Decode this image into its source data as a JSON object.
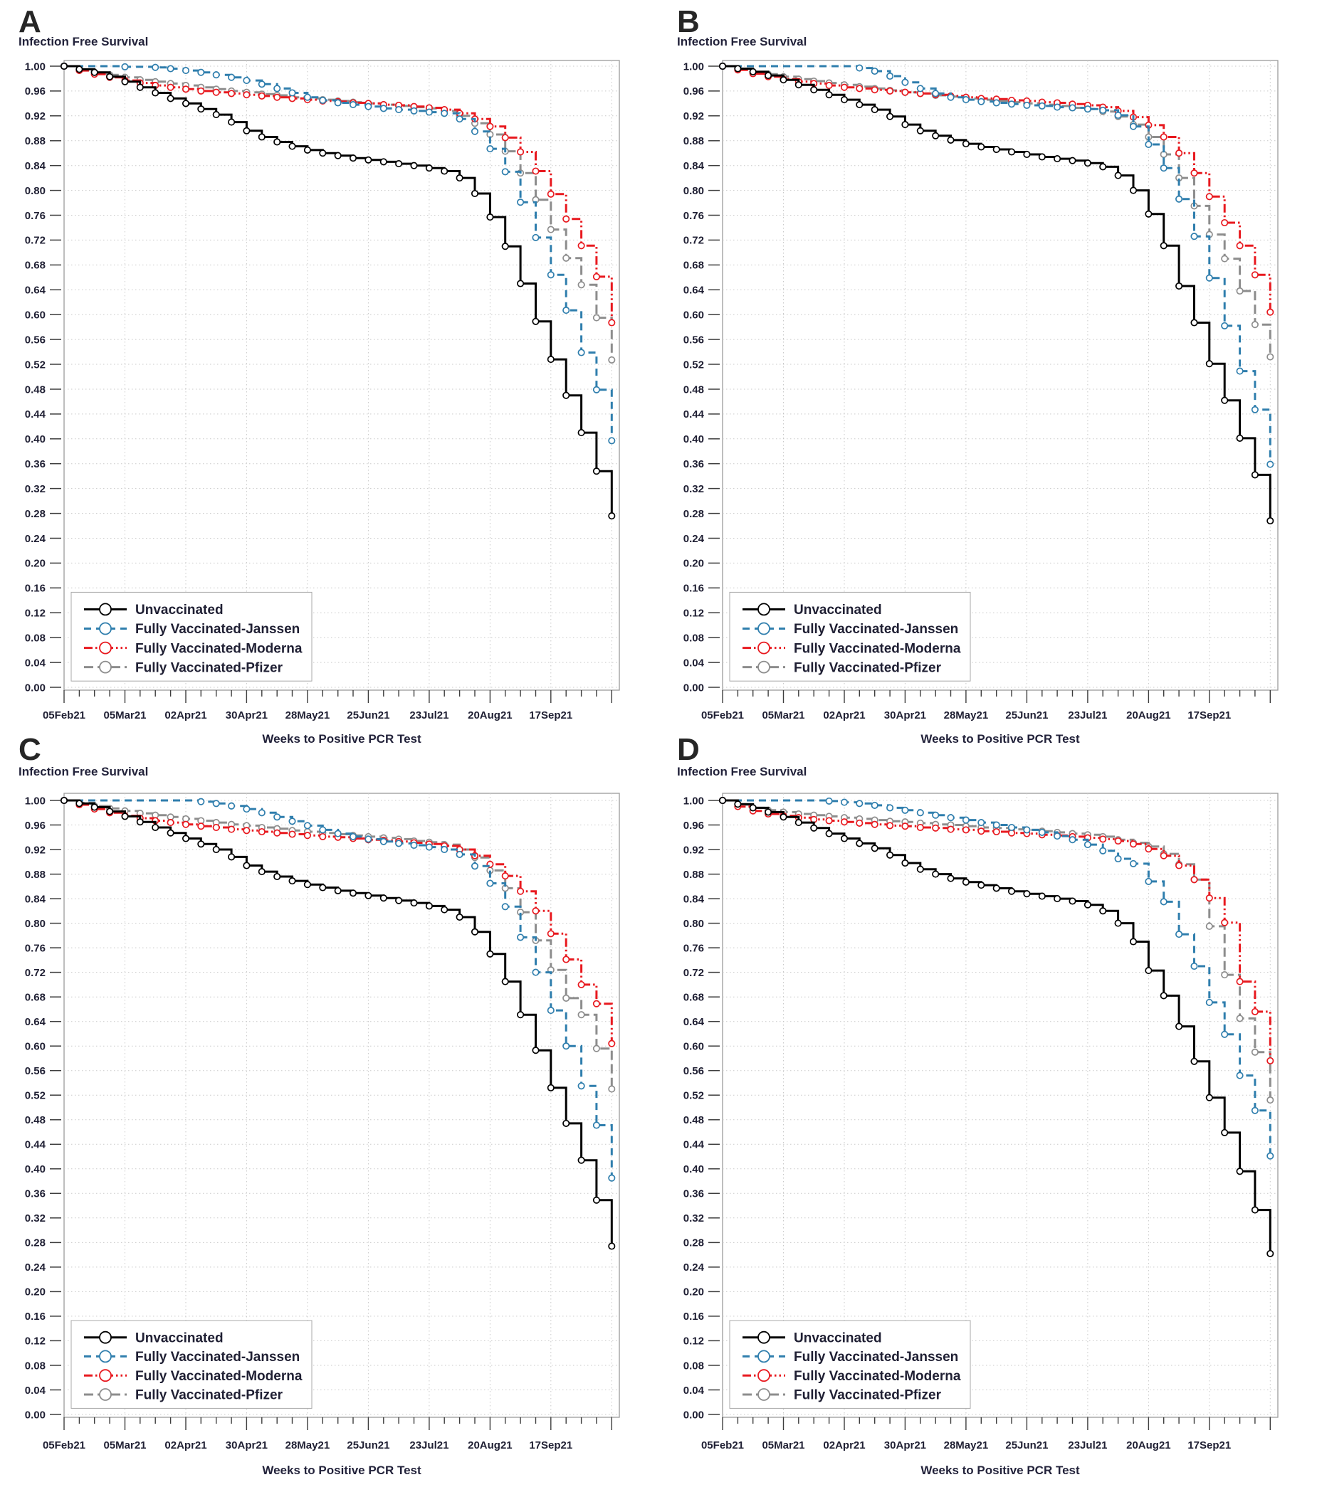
{
  "shared": {
    "y_axis_title": "Infection Free Survival",
    "x_axis_title": "Weeks to Positive PCR Test",
    "y_tick_labels": [
      "1.00",
      "0.96",
      "0.92",
      "0.88",
      "0.84",
      "0.80",
      "0.76",
      "0.72",
      "0.68",
      "0.64",
      "0.60",
      "0.56",
      "0.52",
      "0.48",
      "0.44",
      "0.40",
      "0.36",
      "0.32",
      "0.28",
      "0.24",
      "0.20",
      "0.16",
      "0.12",
      "0.08",
      "0.04",
      "0.00"
    ],
    "x_tick_labels": [
      "05Feb21",
      "05Mar21",
      "02Apr21",
      "30Apr21",
      "28May21",
      "25Jun21",
      "23Jul21",
      "20Aug21",
      "17Sep21"
    ],
    "x_tick_weeks": [
      0,
      4,
      8,
      12,
      16,
      20,
      24,
      28,
      32
    ],
    "colors": {
      "unvaccinated": "#000000",
      "janssen": "#2f7ead",
      "moderna": "#e8191f",
      "pfizer": "#8d8d8d"
    }
  },
  "chart_data": [
    {
      "panel": "A",
      "type": "line",
      "subtype": "kaplan-meier-step",
      "title": "Infection Free Survival",
      "xlabel": "Weeks to Positive PCR Test",
      "x_unit": "weeks since 05Feb21",
      "ylim": [
        0.0,
        1.0
      ],
      "y_tick_step": 0.04,
      "grid": true,
      "legend_position": "inside-lower-left",
      "series": [
        {
          "name": "Unvaccinated",
          "key": "unvaccinated",
          "values": [
            1.0,
            0.995,
            0.99,
            0.983,
            0.975,
            0.966,
            0.957,
            0.948,
            0.94,
            0.931,
            0.922,
            0.91,
            0.896,
            0.886,
            0.878,
            0.871,
            0.865,
            0.86,
            0.856,
            0.852,
            0.849,
            0.846,
            0.843,
            0.84,
            0.836,
            0.831,
            0.82,
            0.795,
            0.757,
            0.71,
            0.65,
            0.589,
            0.528,
            0.47,
            0.41,
            0.348,
            0.276
          ]
        },
        {
          "name": "Fully Vaccinated-Janssen",
          "key": "janssen",
          "values": [
            1.0,
            1.0,
            1.0,
            1.0,
            0.999,
            0.999,
            0.998,
            0.996,
            0.993,
            0.99,
            0.986,
            0.982,
            0.977,
            0.971,
            0.964,
            0.957,
            0.95,
            0.945,
            0.941,
            0.938,
            0.935,
            0.932,
            0.93,
            0.928,
            0.926,
            0.924,
            0.915,
            0.895,
            0.867,
            0.83,
            0.781,
            0.724,
            0.664,
            0.607,
            0.539,
            0.479,
            0.397
          ]
        },
        {
          "name": "Fully Vaccinated-Moderna",
          "key": "moderna",
          "values": [
            1.0,
            0.993,
            0.987,
            0.982,
            0.977,
            0.973,
            0.969,
            0.966,
            0.963,
            0.96,
            0.958,
            0.956,
            0.954,
            0.952,
            0.95,
            0.948,
            0.946,
            0.944,
            0.943,
            0.941,
            0.94,
            0.938,
            0.937,
            0.935,
            0.933,
            0.93,
            0.924,
            0.915,
            0.903,
            0.885,
            0.862,
            0.831,
            0.794,
            0.754,
            0.711,
            0.661,
            0.587
          ]
        },
        {
          "name": "Fully Vaccinated-Pfizer",
          "key": "pfizer",
          "values": [
            1.0,
            0.995,
            0.99,
            0.986,
            0.982,
            0.978,
            0.975,
            0.972,
            0.969,
            0.966,
            0.963,
            0.96,
            0.958,
            0.955,
            0.953,
            0.95,
            0.948,
            0.946,
            0.944,
            0.942,
            0.94,
            0.938,
            0.936,
            0.934,
            0.932,
            0.928,
            0.92,
            0.908,
            0.89,
            0.863,
            0.828,
            0.785,
            0.737,
            0.691,
            0.648,
            0.595,
            0.527
          ]
        }
      ]
    },
    {
      "panel": "B",
      "type": "line",
      "subtype": "kaplan-meier-step",
      "title": "Infection Free Survival",
      "xlabel": "Weeks to Positive PCR Test",
      "x_unit": "weeks since 05Feb21",
      "ylim": [
        0.0,
        1.0
      ],
      "y_tick_step": 0.04,
      "grid": true,
      "legend_position": "inside-lower-left",
      "series": [
        {
          "name": "Unvaccinated",
          "key": "unvaccinated",
          "values": [
            1.0,
            0.996,
            0.991,
            0.985,
            0.978,
            0.97,
            0.962,
            0.954,
            0.946,
            0.938,
            0.93,
            0.919,
            0.906,
            0.896,
            0.888,
            0.881,
            0.875,
            0.87,
            0.866,
            0.862,
            0.858,
            0.854,
            0.851,
            0.848,
            0.844,
            0.838,
            0.824,
            0.8,
            0.762,
            0.711,
            0.646,
            0.587,
            0.521,
            0.462,
            0.401,
            0.342,
            0.268
          ]
        },
        {
          "name": "Fully Vaccinated-Janssen",
          "key": "janssen",
          "values": [
            1.0,
            1.0,
            1.0,
            1.0,
            1.0,
            1.0,
            1.0,
            1.0,
            1.0,
            0.997,
            0.992,
            0.984,
            0.974,
            0.964,
            0.956,
            0.95,
            0.946,
            0.943,
            0.941,
            0.939,
            0.937,
            0.936,
            0.934,
            0.933,
            0.931,
            0.929,
            0.921,
            0.903,
            0.874,
            0.836,
            0.786,
            0.726,
            0.659,
            0.582,
            0.509,
            0.447,
            0.359
          ]
        },
        {
          "name": "Fully Vaccinated-Moderna",
          "key": "moderna",
          "values": [
            1.0,
            0.994,
            0.988,
            0.983,
            0.979,
            0.975,
            0.972,
            0.969,
            0.966,
            0.964,
            0.962,
            0.96,
            0.958,
            0.956,
            0.954,
            0.952,
            0.95,
            0.948,
            0.947,
            0.945,
            0.944,
            0.942,
            0.941,
            0.939,
            0.937,
            0.934,
            0.928,
            0.918,
            0.905,
            0.886,
            0.86,
            0.828,
            0.79,
            0.748,
            0.711,
            0.664,
            0.604
          ]
        },
        {
          "name": "Fully Vaccinated-Pfizer",
          "key": "pfizer",
          "values": [
            1.0,
            0.996,
            0.991,
            0.987,
            0.983,
            0.979,
            0.976,
            0.973,
            0.97,
            0.967,
            0.964,
            0.961,
            0.958,
            0.956,
            0.953,
            0.951,
            0.948,
            0.946,
            0.944,
            0.942,
            0.94,
            0.938,
            0.936,
            0.933,
            0.931,
            0.927,
            0.919,
            0.906,
            0.886,
            0.858,
            0.82,
            0.775,
            0.729,
            0.69,
            0.638,
            0.584,
            0.532
          ]
        }
      ]
    },
    {
      "panel": "C",
      "type": "line",
      "subtype": "kaplan-meier-step",
      "title": "Infection Free Survival",
      "xlabel": "Weeks to Positive PCR Test",
      "x_unit": "weeks since 05Feb21",
      "ylim": [
        0.0,
        1.0
      ],
      "y_tick_step": 0.04,
      "grid": true,
      "legend_position": "inside-lower-left",
      "series": [
        {
          "name": "Unvaccinated",
          "key": "unvaccinated",
          "values": [
            1.0,
            0.995,
            0.989,
            0.982,
            0.974,
            0.965,
            0.956,
            0.947,
            0.938,
            0.929,
            0.92,
            0.908,
            0.894,
            0.884,
            0.876,
            0.869,
            0.863,
            0.858,
            0.853,
            0.849,
            0.845,
            0.841,
            0.837,
            0.833,
            0.828,
            0.822,
            0.81,
            0.786,
            0.75,
            0.705,
            0.651,
            0.593,
            0.532,
            0.474,
            0.414,
            0.349,
            0.274
          ]
        },
        {
          "name": "Fully Vaccinated-Janssen",
          "key": "janssen",
          "values": [
            1.0,
            1.0,
            1.0,
            1.0,
            1.0,
            1.0,
            1.0,
            1.0,
            1.0,
            0.998,
            0.995,
            0.991,
            0.986,
            0.98,
            0.973,
            0.966,
            0.959,
            0.952,
            0.946,
            0.941,
            0.937,
            0.933,
            0.93,
            0.927,
            0.924,
            0.92,
            0.912,
            0.893,
            0.865,
            0.827,
            0.777,
            0.72,
            0.658,
            0.6,
            0.535,
            0.471,
            0.385
          ]
        },
        {
          "name": "Fully Vaccinated-Moderna",
          "key": "moderna",
          "values": [
            1.0,
            0.993,
            0.986,
            0.98,
            0.975,
            0.971,
            0.967,
            0.964,
            0.961,
            0.958,
            0.956,
            0.953,
            0.951,
            0.949,
            0.947,
            0.945,
            0.943,
            0.941,
            0.94,
            0.938,
            0.936,
            0.935,
            0.933,
            0.931,
            0.929,
            0.926,
            0.92,
            0.91,
            0.896,
            0.877,
            0.852,
            0.82,
            0.783,
            0.741,
            0.7,
            0.669,
            0.604
          ]
        },
        {
          "name": "Fully Vaccinated-Pfizer",
          "key": "pfizer",
          "values": [
            1.0,
            0.996,
            0.991,
            0.987,
            0.983,
            0.979,
            0.976,
            0.973,
            0.97,
            0.967,
            0.964,
            0.961,
            0.959,
            0.956,
            0.954,
            0.951,
            0.949,
            0.947,
            0.945,
            0.943,
            0.941,
            0.939,
            0.937,
            0.934,
            0.932,
            0.928,
            0.92,
            0.907,
            0.886,
            0.857,
            0.818,
            0.772,
            0.724,
            0.678,
            0.651,
            0.596,
            0.53
          ]
        }
      ]
    },
    {
      "panel": "D",
      "type": "line",
      "subtype": "kaplan-meier-step",
      "title": "Infection Free Survival",
      "xlabel": "Weeks to Positive PCR Test",
      "x_unit": "weeks since 05Feb21",
      "ylim": [
        0.0,
        1.0
      ],
      "y_tick_step": 0.04,
      "grid": true,
      "legend_position": "inside-lower-left",
      "series": [
        {
          "name": "Unvaccinated",
          "key": "unvaccinated",
          "values": [
            1.0,
            0.994,
            0.988,
            0.981,
            0.973,
            0.964,
            0.955,
            0.946,
            0.938,
            0.93,
            0.922,
            0.911,
            0.898,
            0.888,
            0.88,
            0.873,
            0.867,
            0.862,
            0.857,
            0.852,
            0.848,
            0.844,
            0.84,
            0.836,
            0.83,
            0.82,
            0.8,
            0.77,
            0.723,
            0.682,
            0.632,
            0.575,
            0.516,
            0.459,
            0.396,
            0.333,
            0.262
          ]
        },
        {
          "name": "Fully Vaccinated-Janssen",
          "key": "janssen",
          "values": [
            1.0,
            1.0,
            1.0,
            1.0,
            1.0,
            1.0,
            1.0,
            0.999,
            0.997,
            0.995,
            0.992,
            0.988,
            0.984,
            0.98,
            0.976,
            0.972,
            0.968,
            0.964,
            0.96,
            0.956,
            0.952,
            0.948,
            0.942,
            0.936,
            0.928,
            0.918,
            0.905,
            0.897,
            0.868,
            0.835,
            0.782,
            0.73,
            0.671,
            0.619,
            0.552,
            0.495,
            0.421
          ]
        },
        {
          "name": "Fully Vaccinated-Moderna",
          "key": "moderna",
          "values": [
            1.0,
            0.99,
            0.983,
            0.978,
            0.975,
            0.972,
            0.969,
            0.967,
            0.965,
            0.963,
            0.961,
            0.959,
            0.958,
            0.956,
            0.955,
            0.953,
            0.952,
            0.95,
            0.949,
            0.947,
            0.946,
            0.944,
            0.943,
            0.941,
            0.939,
            0.937,
            0.934,
            0.929,
            0.921,
            0.91,
            0.894,
            0.871,
            0.841,
            0.801,
            0.705,
            0.656,
            0.576
          ]
        },
        {
          "name": "Fully Vaccinated-Pfizer",
          "key": "pfizer",
          "values": [
            1.0,
            0.993,
            0.988,
            0.984,
            0.981,
            0.978,
            0.976,
            0.974,
            0.972,
            0.97,
            0.968,
            0.966,
            0.965,
            0.963,
            0.961,
            0.96,
            0.958,
            0.956,
            0.955,
            0.953,
            0.952,
            0.95,
            0.948,
            0.946,
            0.944,
            0.941,
            0.936,
            0.931,
            0.925,
            0.913,
            0.896,
            0.871,
            0.795,
            0.716,
            0.645,
            0.59,
            0.512
          ]
        }
      ]
    }
  ]
}
